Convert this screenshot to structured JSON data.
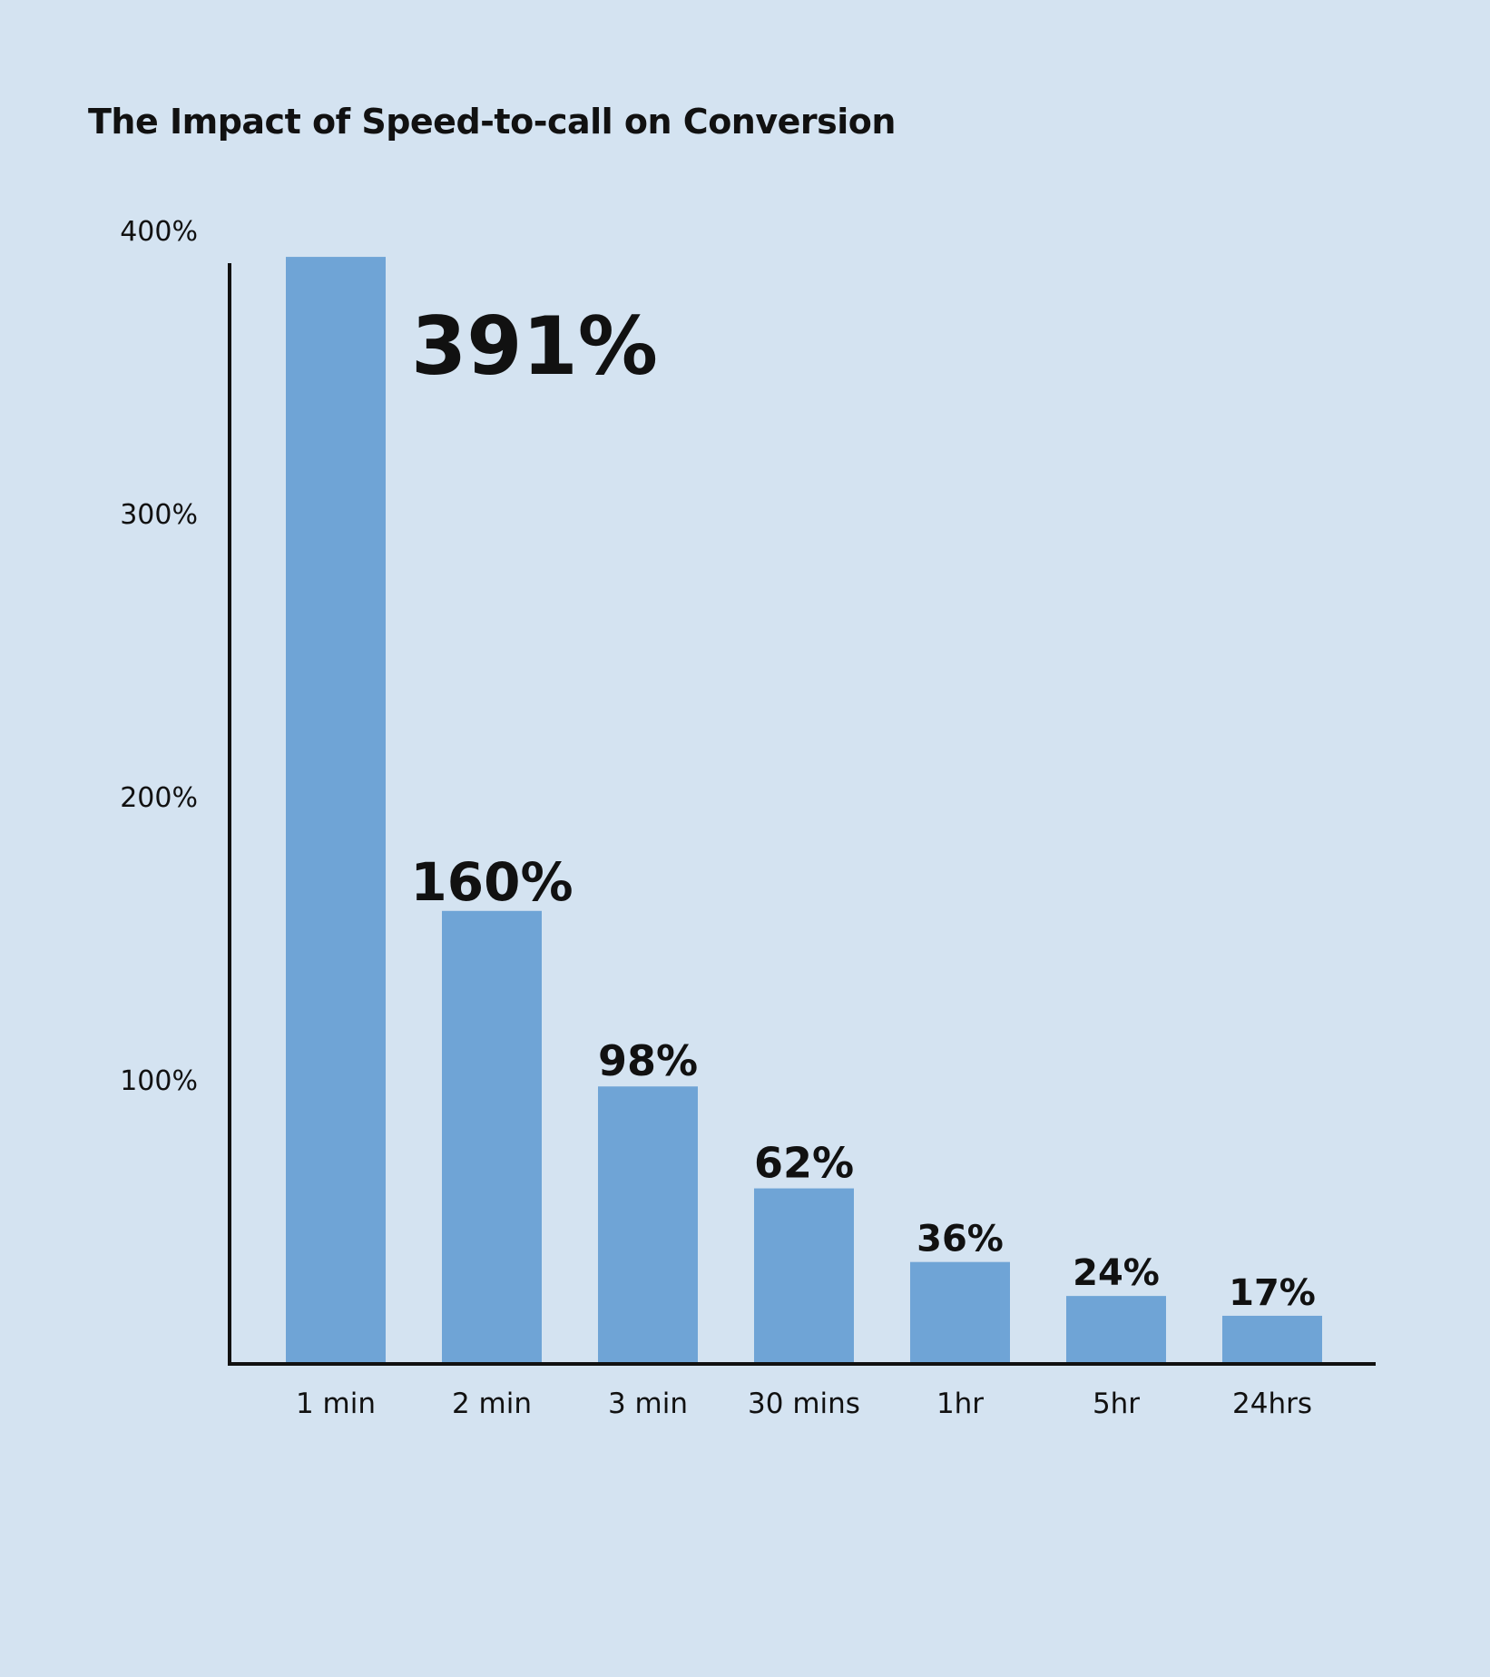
{
  "chart_data": {
    "type": "bar",
    "title": "The Impact of Speed-to-call on Conversion",
    "xlabel": "",
    "ylabel": "",
    "categories": [
      "1 min",
      "2 min",
      "3 min",
      "30 mins",
      "1hr",
      "5hr",
      "24hrs"
    ],
    "values": [
      391,
      160,
      98,
      62,
      36,
      24,
      17
    ],
    "data_labels": [
      "391%",
      "160%",
      "98%",
      "62%",
      "36%",
      "24%",
      "17%"
    ],
    "ylim": [
      0,
      400
    ],
    "yticks": [
      100,
      200,
      300,
      400
    ],
    "ytick_labels": [
      "100%",
      "200%",
      "300%",
      "400%"
    ],
    "grid": false,
    "bar_color": "#6fa4d6",
    "axis_color": "#111111",
    "background": "#d4e3f1"
  }
}
